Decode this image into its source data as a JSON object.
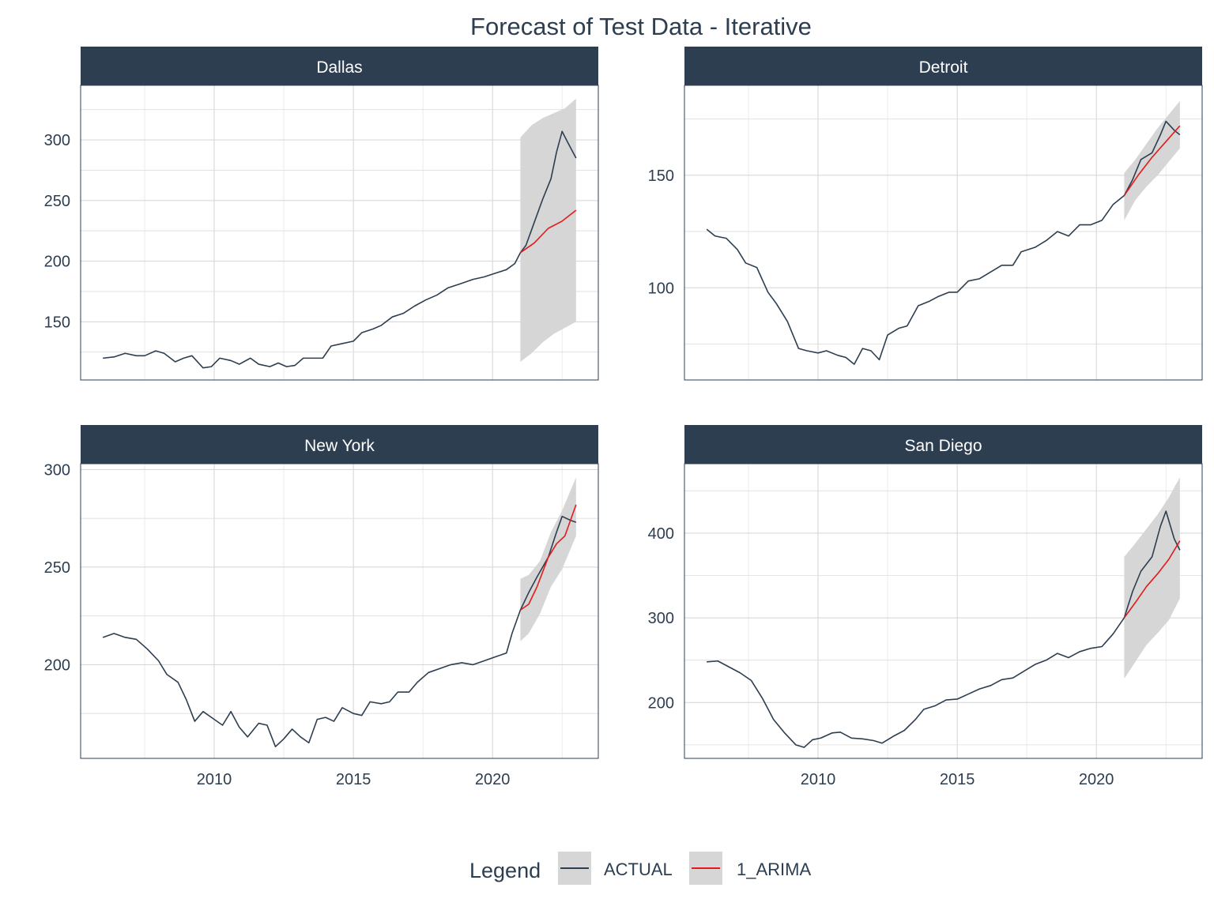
{
  "chart_data": {
    "type": "line",
    "title": "Forecast of Test Data - Iterative",
    "xlabel": "",
    "ylabel": "",
    "x_ticks": [
      2010,
      2015,
      2020
    ],
    "xlim": [
      2005.2,
      2023.8
    ],
    "grid": true,
    "legend": {
      "title": "Legend",
      "position": "bottom",
      "entries": [
        {
          "label": "ACTUAL",
          "color": "#2c3e50"
        },
        {
          "label": "1_ARIMA",
          "color": "#e31a1c"
        }
      ]
    },
    "colors": {
      "strip": "#2c3e50",
      "actual": "#2c3e50",
      "forecast": "#e31a1c",
      "band": "#d6d6d6",
      "grid": "#d3d3d3"
    },
    "panels": [
      {
        "name": "Dallas",
        "ylim": [
          102,
          345
        ],
        "y_ticks": [
          150,
          200,
          250,
          300
        ],
        "actual": [
          [
            2006.0,
            120
          ],
          [
            2006.4,
            121
          ],
          [
            2006.8,
            124
          ],
          [
            2007.2,
            122
          ],
          [
            2007.5,
            122
          ],
          [
            2007.9,
            126
          ],
          [
            2008.2,
            124
          ],
          [
            2008.6,
            117
          ],
          [
            2008.9,
            120
          ],
          [
            2009.2,
            122
          ],
          [
            2009.6,
            112
          ],
          [
            2009.9,
            113
          ],
          [
            2010.2,
            120
          ],
          [
            2010.6,
            118
          ],
          [
            2010.9,
            115
          ],
          [
            2011.3,
            120
          ],
          [
            2011.6,
            115
          ],
          [
            2012.0,
            113
          ],
          [
            2012.3,
            116
          ],
          [
            2012.6,
            113
          ],
          [
            2012.9,
            114
          ],
          [
            2013.2,
            120
          ],
          [
            2013.6,
            120
          ],
          [
            2013.9,
            120
          ],
          [
            2014.2,
            130
          ],
          [
            2014.6,
            132
          ],
          [
            2015.0,
            134
          ],
          [
            2015.3,
            141
          ],
          [
            2015.7,
            144
          ],
          [
            2016.0,
            147
          ],
          [
            2016.4,
            154
          ],
          [
            2016.8,
            157
          ],
          [
            2017.2,
            163
          ],
          [
            2017.6,
            168
          ],
          [
            2018.0,
            172
          ],
          [
            2018.4,
            178
          ],
          [
            2018.8,
            181
          ],
          [
            2019.3,
            185
          ],
          [
            2019.7,
            187
          ],
          [
            2020.1,
            190
          ],
          [
            2020.5,
            193
          ],
          [
            2020.8,
            198
          ],
          [
            2021.0,
            207
          ],
          [
            2021.2,
            213
          ],
          [
            2021.5,
            232
          ],
          [
            2021.8,
            251
          ],
          [
            2022.1,
            268
          ],
          [
            2022.3,
            290
          ],
          [
            2022.5,
            307
          ],
          [
            2022.7,
            298
          ],
          [
            2023.0,
            285
          ]
        ],
        "forecast": [
          [
            2021.0,
            207
          ],
          [
            2021.5,
            215
          ],
          [
            2022.0,
            227
          ],
          [
            2022.5,
            233
          ],
          [
            2023.0,
            242
          ]
        ],
        "upper": [
          [
            2021.0,
            302
          ],
          [
            2021.4,
            312
          ],
          [
            2021.8,
            318
          ],
          [
            2022.2,
            322
          ],
          [
            2022.6,
            326
          ],
          [
            2023.0,
            334
          ]
        ],
        "lower": [
          [
            2021.0,
            117
          ],
          [
            2021.4,
            124
          ],
          [
            2021.8,
            133
          ],
          [
            2022.2,
            140
          ],
          [
            2022.6,
            145
          ],
          [
            2023.0,
            150
          ]
        ]
      },
      {
        "name": "Detroit",
        "ylim": [
          59,
          190
        ],
        "y_ticks": [
          100,
          150
        ],
        "actual": [
          [
            2006.0,
            126
          ],
          [
            2006.3,
            123
          ],
          [
            2006.7,
            122
          ],
          [
            2007.1,
            117
          ],
          [
            2007.4,
            111
          ],
          [
            2007.8,
            109
          ],
          [
            2008.2,
            98
          ],
          [
            2008.5,
            93
          ],
          [
            2008.9,
            85
          ],
          [
            2009.3,
            73
          ],
          [
            2009.6,
            72
          ],
          [
            2010.0,
            71
          ],
          [
            2010.3,
            72
          ],
          [
            2010.7,
            70
          ],
          [
            2011.0,
            69
          ],
          [
            2011.3,
            66
          ],
          [
            2011.6,
            73
          ],
          [
            2011.9,
            72
          ],
          [
            2012.2,
            68
          ],
          [
            2012.5,
            79
          ],
          [
            2012.9,
            82
          ],
          [
            2013.2,
            83
          ],
          [
            2013.6,
            92
          ],
          [
            2014.0,
            94
          ],
          [
            2014.3,
            96
          ],
          [
            2014.7,
            98
          ],
          [
            2015.0,
            98
          ],
          [
            2015.4,
            103
          ],
          [
            2015.8,
            104
          ],
          [
            2016.2,
            107
          ],
          [
            2016.6,
            110
          ],
          [
            2017.0,
            110
          ],
          [
            2017.3,
            116
          ],
          [
            2017.8,
            118
          ],
          [
            2018.2,
            121
          ],
          [
            2018.6,
            125
          ],
          [
            2019.0,
            123
          ],
          [
            2019.4,
            128
          ],
          [
            2019.8,
            128
          ],
          [
            2020.2,
            130
          ],
          [
            2020.6,
            137
          ],
          [
            2021.0,
            141
          ],
          [
            2021.3,
            148
          ],
          [
            2021.6,
            157
          ],
          [
            2022.0,
            160
          ],
          [
            2022.3,
            168
          ],
          [
            2022.5,
            174
          ],
          [
            2022.8,
            170
          ],
          [
            2023.0,
            168
          ]
        ],
        "forecast": [
          [
            2021.0,
            141
          ],
          [
            2021.5,
            150
          ],
          [
            2022.0,
            158
          ],
          [
            2022.5,
            165
          ],
          [
            2023.0,
            172
          ]
        ],
        "upper": [
          [
            2021.0,
            151
          ],
          [
            2021.4,
            157
          ],
          [
            2021.8,
            164
          ],
          [
            2022.2,
            171
          ],
          [
            2022.6,
            177
          ],
          [
            2023.0,
            183
          ]
        ],
        "lower": [
          [
            2021.0,
            130
          ],
          [
            2021.4,
            139
          ],
          [
            2021.8,
            145
          ],
          [
            2022.2,
            150
          ],
          [
            2022.6,
            156
          ],
          [
            2023.0,
            162
          ]
        ]
      },
      {
        "name": "New York",
        "ylim": [
          152,
          303
        ],
        "y_ticks": [
          200,
          250,
          300
        ],
        "actual": [
          [
            2006.0,
            214
          ],
          [
            2006.4,
            216
          ],
          [
            2006.8,
            214
          ],
          [
            2007.2,
            213
          ],
          [
            2007.6,
            208
          ],
          [
            2008.0,
            202
          ],
          [
            2008.3,
            195
          ],
          [
            2008.7,
            191
          ],
          [
            2009.0,
            182
          ],
          [
            2009.3,
            171
          ],
          [
            2009.6,
            176
          ],
          [
            2010.0,
            172
          ],
          [
            2010.3,
            169
          ],
          [
            2010.6,
            176
          ],
          [
            2010.9,
            168
          ],
          [
            2011.2,
            163
          ],
          [
            2011.6,
            170
          ],
          [
            2011.9,
            169
          ],
          [
            2012.2,
            158
          ],
          [
            2012.5,
            162
          ],
          [
            2012.8,
            167
          ],
          [
            2013.1,
            163
          ],
          [
            2013.4,
            160
          ],
          [
            2013.7,
            172
          ],
          [
            2014.0,
            173
          ],
          [
            2014.3,
            171
          ],
          [
            2014.6,
            178
          ],
          [
            2015.0,
            175
          ],
          [
            2015.3,
            174
          ],
          [
            2015.6,
            181
          ],
          [
            2016.0,
            180
          ],
          [
            2016.3,
            181
          ],
          [
            2016.6,
            186
          ],
          [
            2017.0,
            186
          ],
          [
            2017.3,
            191
          ],
          [
            2017.7,
            196
          ],
          [
            2018.1,
            198
          ],
          [
            2018.5,
            200
          ],
          [
            2018.9,
            201
          ],
          [
            2019.3,
            200
          ],
          [
            2019.7,
            202
          ],
          [
            2020.1,
            204
          ],
          [
            2020.5,
            206
          ],
          [
            2020.7,
            216
          ],
          [
            2021.0,
            228
          ],
          [
            2021.3,
            237
          ],
          [
            2021.6,
            245
          ],
          [
            2022.0,
            255
          ],
          [
            2022.3,
            268
          ],
          [
            2022.5,
            276
          ],
          [
            2022.8,
            274
          ],
          [
            2023.0,
            273
          ]
        ],
        "forecast": [
          [
            2021.0,
            228
          ],
          [
            2021.3,
            231
          ],
          [
            2021.6,
            240
          ],
          [
            2022.0,
            255
          ],
          [
            2022.3,
            262
          ],
          [
            2022.6,
            266
          ],
          [
            2023.0,
            282
          ]
        ],
        "upper": [
          [
            2021.0,
            244
          ],
          [
            2021.3,
            246
          ],
          [
            2021.7,
            253
          ],
          [
            2022.1,
            268
          ],
          [
            2022.5,
            279
          ],
          [
            2023.0,
            296
          ]
        ],
        "lower": [
          [
            2021.0,
            212
          ],
          [
            2021.3,
            216
          ],
          [
            2021.7,
            226
          ],
          [
            2022.1,
            240
          ],
          [
            2022.5,
            249
          ],
          [
            2023.0,
            266
          ]
        ]
      },
      {
        "name": "San Diego",
        "ylim": [
          134,
          482
        ],
        "y_ticks": [
          200,
          300,
          400
        ],
        "actual": [
          [
            2006.0,
            248
          ],
          [
            2006.4,
            249
          ],
          [
            2006.8,
            242
          ],
          [
            2007.2,
            235
          ],
          [
            2007.6,
            226
          ],
          [
            2008.0,
            205
          ],
          [
            2008.4,
            180
          ],
          [
            2008.8,
            164
          ],
          [
            2009.2,
            150
          ],
          [
            2009.5,
            147
          ],
          [
            2009.8,
            156
          ],
          [
            2010.1,
            158
          ],
          [
            2010.5,
            164
          ],
          [
            2010.8,
            165
          ],
          [
            2011.2,
            158
          ],
          [
            2011.6,
            157
          ],
          [
            2012.0,
            155
          ],
          [
            2012.3,
            152
          ],
          [
            2012.7,
            160
          ],
          [
            2013.1,
            167
          ],
          [
            2013.5,
            180
          ],
          [
            2013.8,
            192
          ],
          [
            2014.2,
            196
          ],
          [
            2014.6,
            203
          ],
          [
            2015.0,
            204
          ],
          [
            2015.4,
            210
          ],
          [
            2015.8,
            216
          ],
          [
            2016.2,
            220
          ],
          [
            2016.6,
            227
          ],
          [
            2017.0,
            229
          ],
          [
            2017.4,
            237
          ],
          [
            2017.8,
            245
          ],
          [
            2018.2,
            250
          ],
          [
            2018.6,
            258
          ],
          [
            2019.0,
            253
          ],
          [
            2019.4,
            260
          ],
          [
            2019.8,
            264
          ],
          [
            2020.2,
            266
          ],
          [
            2020.6,
            281
          ],
          [
            2021.0,
            300
          ],
          [
            2021.3,
            331
          ],
          [
            2021.6,
            355
          ],
          [
            2022.0,
            372
          ],
          [
            2022.3,
            408
          ],
          [
            2022.5,
            426
          ],
          [
            2022.8,
            393
          ],
          [
            2023.0,
            380
          ]
        ],
        "forecast": [
          [
            2021.0,
            300
          ],
          [
            2021.4,
            318
          ],
          [
            2021.8,
            337
          ],
          [
            2022.2,
            352
          ],
          [
            2022.6,
            369
          ],
          [
            2023.0,
            391
          ]
        ],
        "upper": [
          [
            2021.0,
            372
          ],
          [
            2021.4,
            388
          ],
          [
            2021.8,
            405
          ],
          [
            2022.2,
            422
          ],
          [
            2022.6,
            442
          ],
          [
            2023.0,
            466
          ]
        ],
        "lower": [
          [
            2021.0,
            228
          ],
          [
            2021.4,
            248
          ],
          [
            2021.8,
            268
          ],
          [
            2022.2,
            282
          ],
          [
            2022.6,
            297
          ],
          [
            2023.0,
            323
          ]
        ]
      }
    ]
  }
}
